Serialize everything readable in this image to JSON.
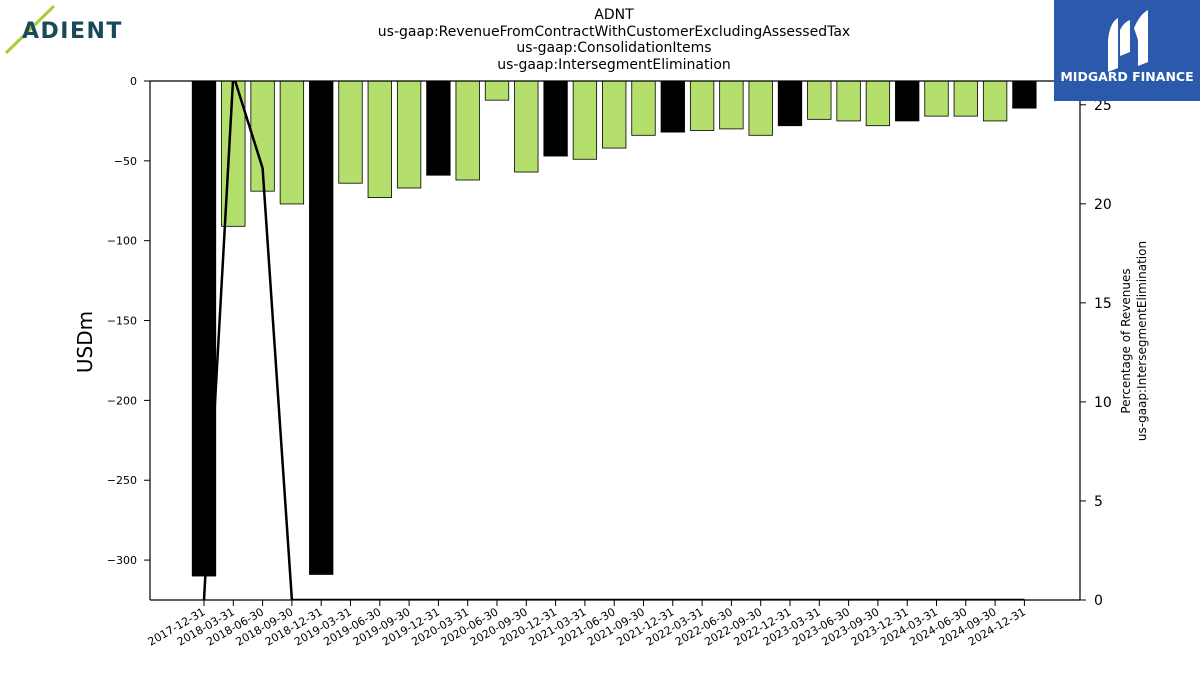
{
  "brand_left": {
    "name": "ADIENT",
    "accent": "#a6ce39",
    "text_color": "#1a4a5a"
  },
  "brand_right": {
    "name": "MIDGARD FINANCE",
    "bg": "#2b5aad"
  },
  "colors": {
    "bar_green": "#b5df6c",
    "bar_black": "#000000",
    "line": "#000000"
  },
  "chart_data": {
    "type": "bar",
    "title_lines": [
      "ADNT",
      "us-gaap:RevenueFromContractWithCustomerExcludingAssessedTax",
      "us-gaap:ConsolidationItems",
      "us-gaap:IntersegmentElimination"
    ],
    "ylabel": "USDm",
    "y2label_lines": [
      "Percentage of Revenues",
      "us-gaap:IntersegmentElimination"
    ],
    "ylim": [
      -325,
      0
    ],
    "y_ticks": [
      0,
      -50,
      -100,
      -150,
      -200,
      -250,
      -300
    ],
    "y_tick_labels": [
      "0",
      "−50",
      "−100",
      "−150",
      "−200",
      "−250",
      "−300"
    ],
    "y2lim": [
      0,
      26.2
    ],
    "y2_ticks": [
      0,
      5,
      10,
      15,
      20,
      25
    ],
    "y2_tick_labels": [
      "0",
      "5",
      "10",
      "15",
      "20",
      "25"
    ],
    "grid": false,
    "categories": [
      "2017-12-31",
      "2018-03-31",
      "2018-06-30",
      "2018-09-30",
      "2018-12-31",
      "2019-03-31",
      "2019-06-30",
      "2019-09-30",
      "2019-12-31",
      "2020-03-31",
      "2020-06-30",
      "2020-09-30",
      "2020-12-31",
      "2021-03-31",
      "2021-06-30",
      "2021-09-30",
      "2021-12-31",
      "2022-03-31",
      "2022-06-30",
      "2022-09-30",
      "2022-12-31",
      "2023-03-31",
      "2023-06-30",
      "2023-09-30",
      "2023-12-31",
      "2024-03-31",
      "2024-06-30",
      "2024-09-30",
      "2024-12-31"
    ],
    "values": [
      -310,
      -91,
      -69,
      -77,
      -309,
      -64,
      -73,
      -67,
      -59,
      -62,
      -12,
      -57,
      -47,
      -49,
      -42,
      -34,
      -32,
      -31,
      -30,
      -34,
      -28,
      -24,
      -25,
      -28,
      -25,
      -22,
      -22,
      -25,
      -17
    ],
    "fiscal_year_end": [
      true,
      false,
      false,
      false,
      true,
      false,
      false,
      false,
      true,
      false,
      false,
      false,
      true,
      false,
      false,
      false,
      true,
      false,
      false,
      false,
      true,
      false,
      false,
      false,
      true,
      false,
      false,
      false,
      true
    ],
    "line_series": {
      "axis": "right",
      "values": [
        0,
        26.5,
        21.8,
        0,
        0,
        0,
        0,
        0,
        0,
        0,
        0,
        0,
        0,
        0,
        0,
        0,
        0,
        0,
        0,
        0,
        0,
        0,
        0,
        0,
        0,
        0,
        0,
        0,
        0
      ]
    }
  }
}
